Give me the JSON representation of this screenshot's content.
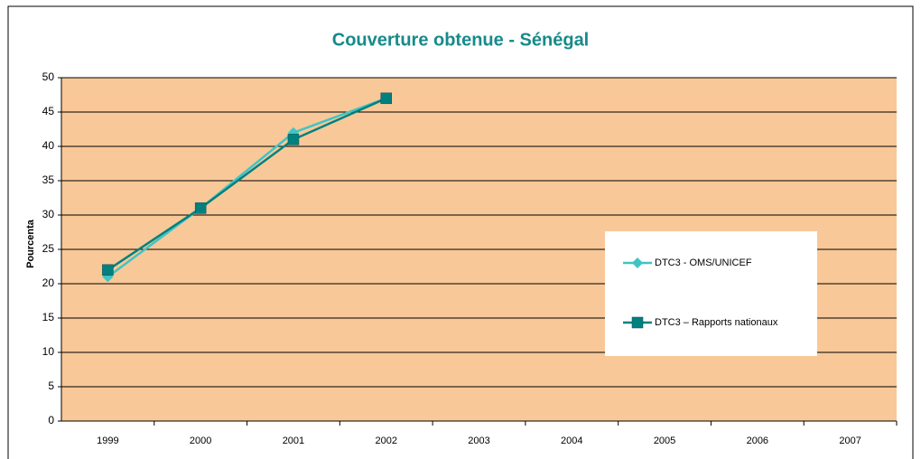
{
  "chart_data": {
    "type": "line",
    "title": "Couverture obtenue - Sénégal",
    "y_label": "Pourcenta",
    "categories": [
      "1999",
      "2000",
      "2001",
      "2002",
      "2003",
      "2004",
      "2005",
      "2006",
      "2007"
    ],
    "series": [
      {
        "name": "DTC3 - OMS/UNICEF",
        "color": "#40c4c4",
        "marker": "diamond",
        "values": [
          21,
          31,
          42,
          47,
          null,
          null,
          null,
          null,
          null
        ]
      },
      {
        "name": "DTC3 – Rapports nationaux",
        "color": "#00807f",
        "marker": "square",
        "values": [
          22,
          31,
          41,
          47,
          null,
          null,
          null,
          null,
          null
        ]
      }
    ],
    "ylim": [
      0,
      50
    ],
    "yticks": [
      0,
      5,
      10,
      15,
      20,
      25,
      30,
      35,
      40,
      45,
      50
    ],
    "grid": true,
    "background": "#f9c898"
  }
}
